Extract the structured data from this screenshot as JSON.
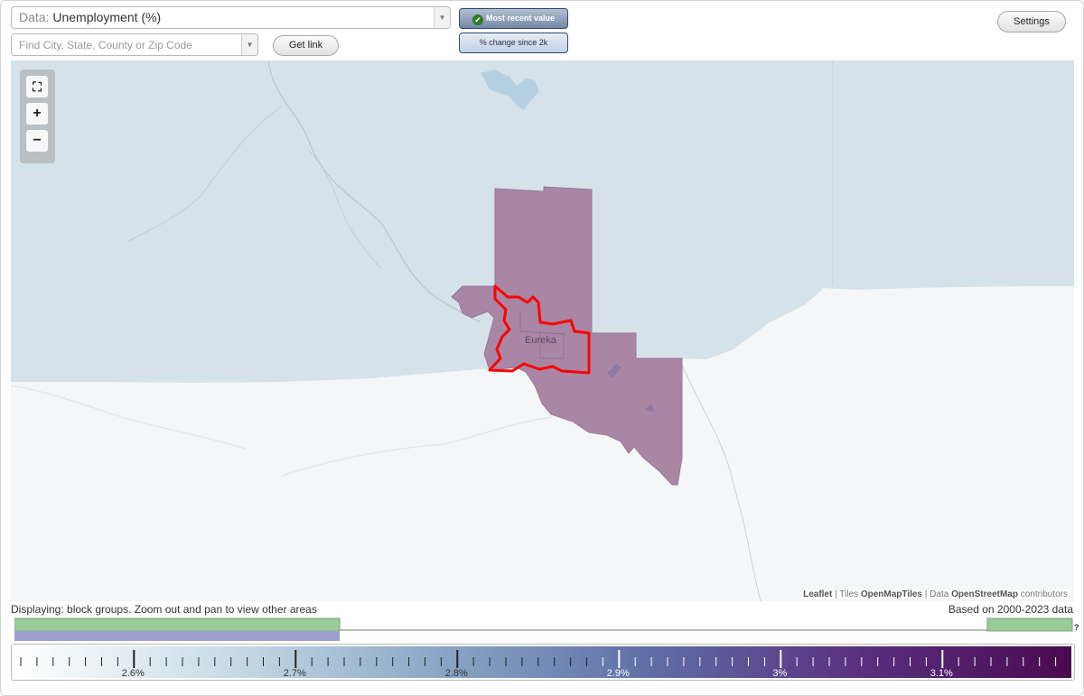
{
  "data_selector": {
    "prefix": "Data:",
    "value": "Unemployment (%)",
    "arrow": "▼"
  },
  "search": {
    "placeholder": "Find City, State, County or Zip Code",
    "value": "",
    "arrow": "▼"
  },
  "buttons": {
    "get_link": "Get link",
    "settings": "Settings"
  },
  "view_toggle": {
    "active": "Most recent value",
    "inactive": "% change since 2k"
  },
  "map": {
    "place_label": "Eureka",
    "zoom": {
      "fullscreen": "⛶",
      "in": "+",
      "out": "−"
    },
    "colors": {
      "land": "#f4f6f7",
      "water": "#d5e2e9",
      "region_fill": "#a886a4",
      "highlight": "#ff0000"
    },
    "attribution": {
      "leaflet": "Leaflet",
      "sep1": " | Tiles ",
      "tiles": "OpenMapTiles",
      "sep2": " | Data ",
      "osm": "OpenStreetMap",
      "tail": " contributors"
    }
  },
  "footer": {
    "displaying": "Displaying: block groups. Zoom out and pan to view other areas",
    "based_on": "Based on 2000-2023 data",
    "help": "?"
  },
  "legend": {
    "labels": [
      "2.6%",
      "2.7%",
      "2.8%",
      "2.9%",
      "3%",
      "3.1%"
    ],
    "gradient": [
      "#ffffff",
      "#c9dce6",
      "#8aa7c6",
      "#5f6fa6",
      "#5a2f80",
      "#4a0a4e"
    ]
  }
}
